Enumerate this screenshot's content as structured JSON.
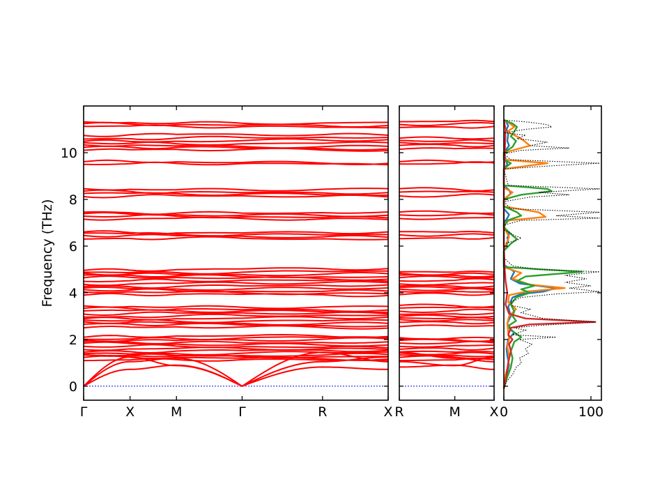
{
  "chart_data": {
    "type": "line",
    "ylabel": "Frequency (THz)",
    "ylim": [
      -0.6,
      12.0
    ],
    "yticks": [
      0,
      2,
      4,
      6,
      8,
      10
    ],
    "colors": {
      "band": "#ff0000",
      "zero": "#0000ff",
      "total_dos": "#000000",
      "dos_series": [
        "#1f77b4",
        "#ff7f0e",
        "#2ca02c",
        "#d62728"
      ]
    },
    "panels": [
      {
        "kind": "band",
        "x_labels": [
          "Γ",
          "X",
          "M",
          "Γ",
          "R",
          "X"
        ],
        "segment_lengths": [
          0.5,
          0.5,
          0.707,
          0.866,
          0.707
        ],
        "acoustic": [
          [
            0.0,
            1.05,
            1.2,
            0.0,
            1.45,
            1.05
          ],
          [
            0.0,
            1.25,
            0.88,
            0.0,
            1.05,
            1.25
          ],
          [
            0.0,
            0.72,
            0.9,
            0.0,
            0.82,
            0.72
          ]
        ],
        "optic_groups": [
          [
            1.1,
            1.2,
            1.3,
            1.35,
            1.42,
            1.5,
            1.58,
            1.68,
            1.8,
            1.9,
            2.0,
            2.05,
            2.12
          ],
          [
            2.5,
            2.62,
            2.72,
            2.82,
            2.92,
            3.0,
            3.1,
            3.2,
            3.3,
            3.42
          ],
          [
            3.9,
            4.0,
            4.1,
            4.2,
            4.3,
            4.4,
            4.5,
            4.62,
            4.72,
            4.82,
            4.9,
            5.0
          ],
          [
            6.3,
            6.42,
            6.52,
            6.6
          ],
          [
            7.15,
            7.25,
            7.35,
            7.45
          ],
          [
            8.12,
            8.22,
            8.32,
            8.45
          ],
          [
            9.5,
            9.58
          ],
          [
            10.1,
            10.2,
            10.3,
            10.42,
            10.52,
            10.62,
            10.75,
            11.1,
            11.2,
            11.3
          ]
        ]
      },
      {
        "kind": "band",
        "x_labels": [
          "R",
          "M",
          "X"
        ],
        "segment_lengths": [
          0.707,
          0.5
        ],
        "acoustic": [
          [
            1.45,
            1.2,
            1.05
          ],
          [
            1.05,
            0.88,
            1.25
          ],
          [
            0.82,
            0.9,
            0.72
          ]
        ],
        "optic_groups": [
          [
            1.1,
            1.2,
            1.3,
            1.42,
            1.5,
            1.62,
            1.72,
            1.82,
            1.92,
            2.0,
            2.1
          ],
          [
            2.55,
            2.7,
            2.82,
            2.92,
            3.02,
            3.12,
            3.22,
            3.32,
            3.42
          ],
          [
            3.92,
            4.02,
            4.12,
            4.22,
            4.32,
            4.42,
            4.52,
            4.62,
            4.72,
            4.82,
            4.92
          ],
          [
            6.32,
            6.45,
            6.58
          ],
          [
            7.18,
            7.3,
            7.42
          ],
          [
            8.15,
            8.28,
            8.42
          ],
          [
            9.52,
            9.58
          ],
          [
            10.15,
            10.28,
            10.4,
            10.52,
            10.65,
            11.12,
            11.22,
            11.3
          ]
        ]
      },
      {
        "kind": "dos",
        "xlim": [
          0,
          112
        ],
        "xticks": [
          0,
          100
        ],
        "total": {
          "f": [
            -0.1,
            0.2,
            0.5,
            0.8,
            1.0,
            1.2,
            1.4,
            1.6,
            1.8,
            2.0,
            2.1,
            2.2,
            2.4,
            2.5,
            2.6,
            2.75,
            2.9,
            3.0,
            3.15,
            3.3,
            3.45,
            3.6,
            3.8,
            3.95,
            4.05,
            4.2,
            4.3,
            4.45,
            4.6,
            4.75,
            4.9,
            5.0,
            5.15,
            5.5,
            6.1,
            6.25,
            6.35,
            6.45,
            6.55,
            6.7,
            6.9,
            7.1,
            7.2,
            7.3,
            7.45,
            7.6,
            7.9,
            8.1,
            8.2,
            8.3,
            8.45,
            8.6,
            9.3,
            9.45,
            9.55,
            9.7,
            9.95,
            10.1,
            10.2,
            10.3,
            10.45,
            10.6,
            10.75,
            10.85,
            11.0,
            11.1,
            11.2,
            11.3,
            11.4
          ],
          "d": [
            0,
            3,
            10,
            14,
            20,
            18,
            28,
            25,
            32,
            18,
            60,
            10,
            25,
            12,
            40,
            105,
            45,
            35,
            20,
            30,
            10,
            8,
            20,
            60,
            110,
            75,
            100,
            70,
            95,
            70,
            110,
            40,
            10,
            0,
            0,
            15,
            20,
            12,
            8,
            0,
            0,
            20,
            110,
            60,
            110,
            8,
            0,
            30,
            75,
            40,
            110,
            5,
            0,
            60,
            110,
            8,
            0,
            20,
            75,
            30,
            50,
            15,
            25,
            0,
            25,
            55,
            50,
            30,
            0
          ]
        },
        "series": [
          {
            "f": [
              -0.1,
              0.3,
              0.6,
              0.9,
              1.1,
              1.3,
              1.6,
              2.0,
              2.3,
              2.5,
              2.7,
              3.0,
              3.4,
              3.8,
              3.95,
              4.05,
              4.2,
              4.4,
              4.6,
              4.9,
              5.2,
              5.8,
              6.2,
              6.35,
              6.5,
              6.8,
              7.0,
              7.2,
              7.35,
              7.6,
              8.0,
              8.25,
              8.4,
              8.6,
              9.3,
              9.5,
              9.6,
              10.0,
              10.3,
              10.5,
              10.8,
              11.0,
              11.15,
              11.3,
              11.4
            ],
            "d": [
              0,
              2,
              4,
              6,
              5,
              4,
              3,
              5,
              12,
              6,
              4,
              8,
              5,
              10,
              20,
              45,
              60,
              18,
              8,
              12,
              0,
              0,
              5,
              4,
              6,
              0,
              0,
              4,
              6,
              0,
              0,
              8,
              6,
              0,
              0,
              4,
              3,
              0,
              6,
              4,
              5,
              3,
              5,
              3,
              0
            ]
          },
          {
            "f": [
              -0.1,
              0.5,
              0.9,
              1.3,
              1.7,
              2.0,
              2.3,
              2.7,
              3.0,
              3.3,
              3.6,
              3.9,
              4.05,
              4.2,
              4.35,
              4.6,
              4.85,
              5.1,
              5.8,
              6.2,
              6.4,
              6.6,
              6.9,
              7.1,
              7.25,
              7.45,
              7.7,
              8.0,
              8.3,
              8.5,
              9.3,
              9.55,
              9.7,
              10.0,
              10.3,
              10.6,
              10.9,
              11.1,
              11.3,
              11.4
            ],
            "d": [
              0,
              2,
              5,
              6,
              4,
              6,
              5,
              4,
              6,
              14,
              5,
              6,
              25,
              70,
              30,
              10,
              20,
              0,
              0,
              4,
              6,
              3,
              0,
              6,
              48,
              40,
              0,
              0,
              10,
              0,
              0,
              50,
              0,
              0,
              30,
              20,
              4,
              12,
              5,
              0
            ]
          },
          {
            "f": [
              -0.1,
              0.4,
              0.8,
              1.2,
              1.5,
              1.9,
              2.1,
              2.4,
              2.6,
              2.8,
              3.0,
              3.2,
              3.5,
              3.8,
              4.0,
              4.15,
              4.3,
              4.5,
              4.7,
              4.9,
              5.1,
              5.8,
              6.1,
              6.3,
              6.45,
              6.6,
              6.8,
              7.1,
              7.3,
              7.45,
              7.7,
              8.0,
              8.2,
              8.35,
              8.45,
              8.6,
              9.3,
              9.55,
              9.7,
              10.0,
              10.25,
              10.5,
              10.7,
              10.9,
              11.1,
              11.25,
              11.4
            ],
            "d": [
              0,
              4,
              8,
              10,
              8,
              12,
              20,
              8,
              6,
              14,
              10,
              12,
              8,
              14,
              30,
              20,
              35,
              15,
              25,
              90,
              0,
              0,
              8,
              15,
              10,
              6,
              0,
              4,
              20,
              15,
              0,
              0,
              20,
              55,
              50,
              0,
              0,
              8,
              0,
              0,
              10,
              14,
              8,
              12,
              15,
              10,
              0
            ]
          },
          {
            "f": [
              -0.1,
              0.5,
              1.0,
              1.5,
              1.8,
              2.0,
              2.2,
              2.5,
              2.65,
              2.75,
              2.9,
              3.1,
              3.5,
              4.0,
              4.5,
              5.0,
              6.0,
              7.0,
              8.0,
              9.0,
              10.0,
              11.0,
              11.4
            ],
            "d": [
              0,
              3,
              5,
              8,
              6,
              10,
              5,
              8,
              30,
              105,
              25,
              6,
              2,
              4,
              2,
              1,
              0,
              0,
              0,
              0,
              1,
              2,
              0
            ]
          }
        ]
      }
    ]
  }
}
